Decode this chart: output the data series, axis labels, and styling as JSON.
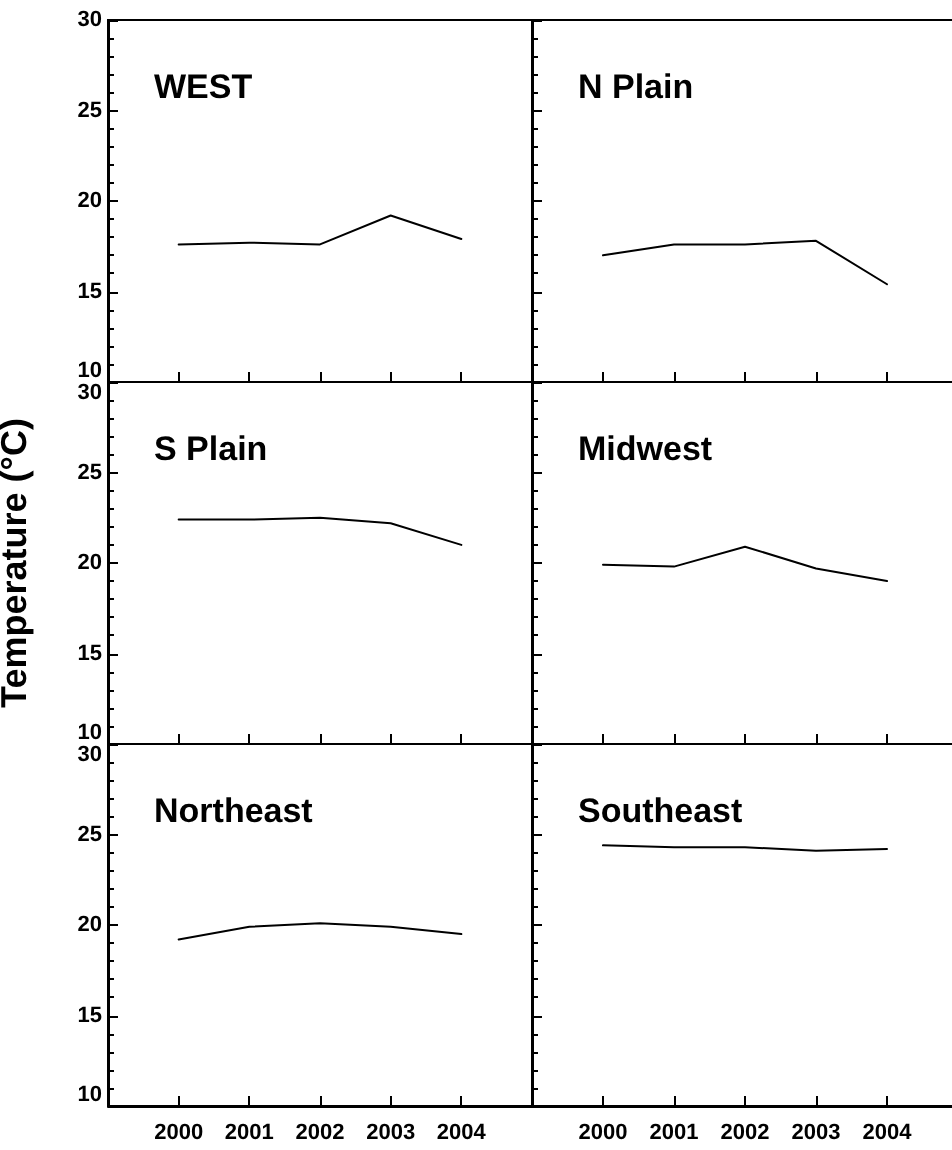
{
  "chart_data": [
    {
      "type": "line",
      "title": "WEST",
      "x": [
        2000,
        2001,
        2002,
        2003,
        2004
      ],
      "series": [
        {
          "color": "#000000",
          "values": [
            17.6,
            17.7,
            17.6,
            19.2,
            17.9
          ]
        }
      ],
      "xlim": [
        1999,
        2005
      ],
      "xticks": [
        2000,
        2001,
        2002,
        2003,
        2004
      ],
      "ylim": [
        10,
        30
      ],
      "yticks": [
        10,
        15,
        20,
        25,
        30
      ],
      "tick_labels": "y",
      "grid": false,
      "marker": "none"
    },
    {
      "type": "line",
      "title": "N Plain",
      "x": [
        2000,
        2001,
        2002,
        2003,
        2004
      ],
      "series": [
        {
          "color": "#000000",
          "values": [
            17.0,
            17.6,
            17.6,
            17.8,
            15.4
          ]
        }
      ],
      "xlim": [
        1999,
        2005
      ],
      "xticks": [
        2000,
        2001,
        2002,
        2003,
        2004
      ],
      "ylim": [
        10,
        30
      ],
      "yticks": [
        10,
        15,
        20,
        25,
        30
      ],
      "tick_labels": false,
      "grid": false,
      "marker": "none"
    },
    {
      "type": "line",
      "title": "S Plain",
      "ylabel": "Temperature (°C)",
      "x": [
        2000,
        2001,
        2002,
        2003,
        2004
      ],
      "series": [
        {
          "color": "#000000",
          "values": [
            22.4,
            22.4,
            22.5,
            22.2,
            21.0
          ]
        }
      ],
      "xlim": [
        1999,
        2005
      ],
      "xticks": [
        2000,
        2001,
        2002,
        2003,
        2004
      ],
      "ylim": [
        10,
        30
      ],
      "yticks": [
        10,
        15,
        20,
        25,
        30
      ],
      "tick_labels": "y",
      "grid": false,
      "marker": "none"
    },
    {
      "type": "line",
      "title": "Midwest",
      "x": [
        2000,
        2001,
        2002,
        2003,
        2004
      ],
      "series": [
        {
          "color": "#000000",
          "values": [
            19.9,
            19.8,
            20.9,
            19.7,
            19.0
          ]
        }
      ],
      "xlim": [
        1999,
        2005
      ],
      "xticks": [
        2000,
        2001,
        2002,
        2003,
        2004
      ],
      "ylim": [
        10,
        30
      ],
      "yticks": [
        10,
        15,
        20,
        25,
        30
      ],
      "tick_labels": false,
      "grid": false,
      "marker": "none"
    },
    {
      "type": "line",
      "title": "Northeast",
      "x": [
        2000,
        2001,
        2002,
        2003,
        2004
      ],
      "series": [
        {
          "color": "#000000",
          "values": [
            19.2,
            19.9,
            20.1,
            19.9,
            19.5
          ]
        }
      ],
      "xlim": [
        1999,
        2005
      ],
      "xticks": [
        2000,
        2001,
        2002,
        2003,
        2004
      ],
      "ylim": [
        10,
        30
      ],
      "yticks": [
        10,
        15,
        20,
        25,
        30
      ],
      "grid": false,
      "marker": "none"
    },
    {
      "type": "line",
      "title": "Southeast",
      "x": [
        2000,
        2001,
        2002,
        2003,
        2004
      ],
      "series": [
        {
          "color": "#000000",
          "values": [
            24.4,
            24.3,
            24.3,
            24.1,
            24.2
          ]
        }
      ],
      "xlim": [
        1999,
        2005
      ],
      "xticks": [
        2000,
        2001,
        2002,
        2003,
        2004
      ],
      "ylim": [
        10,
        30
      ],
      "yticks": [
        10,
        15,
        20,
        25,
        30
      ],
      "tick_labels": "x",
      "grid": false,
      "marker": "none"
    }
  ]
}
